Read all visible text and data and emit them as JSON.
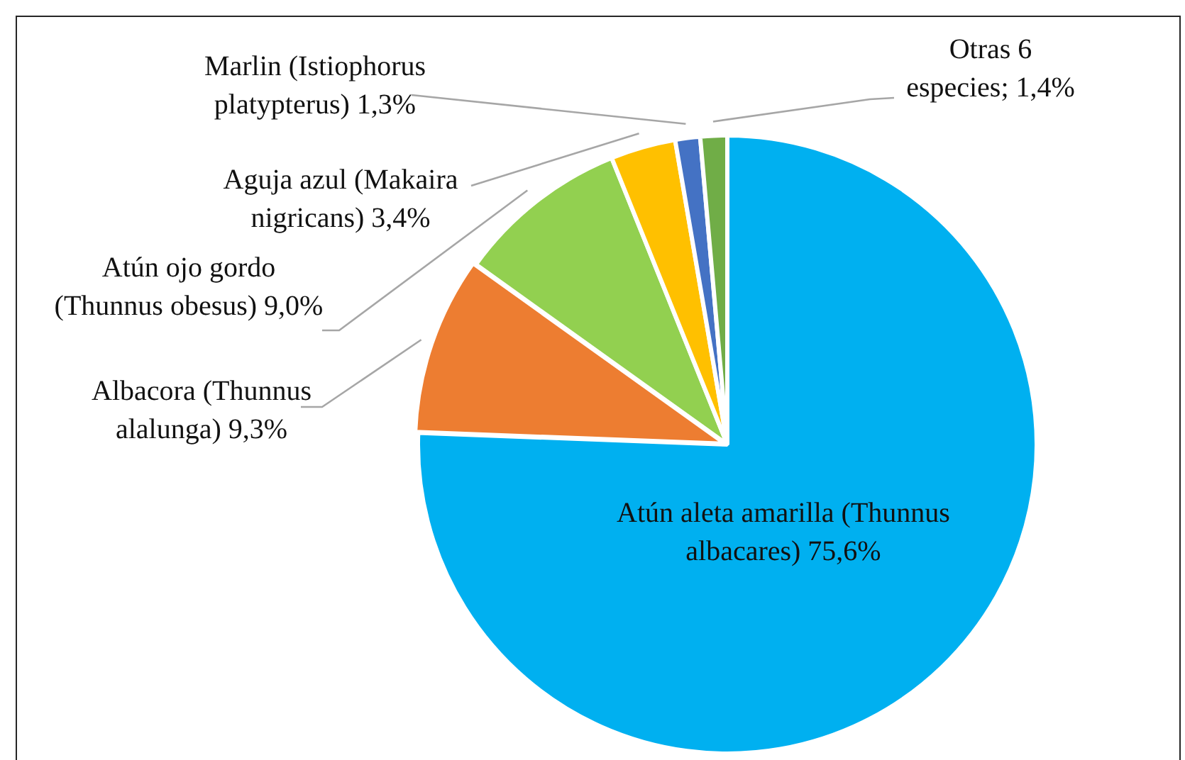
{
  "chart_data": {
    "type": "pie",
    "categories": [
      "Atún aleta amarilla (Thunnus albacares)",
      "Albacora (Thunnus alalunga)",
      "Atún ojo gordo (Thunnus obesus)",
      "Aguja azul (Makaira nigricans)",
      "Marlin (Istiophorus platypterus)",
      "Otras 6 especies"
    ],
    "values": [
      75.6,
      9.3,
      9.0,
      3.4,
      1.3,
      1.4
    ],
    "colors": [
      "#00b0f0",
      "#ed7d31",
      "#92d050",
      "#ffc000",
      "#4472c4",
      "#70ad47"
    ],
    "value_labels": [
      "75,6%",
      "9,3%",
      "9,0%",
      "3,4%",
      "1,3%",
      "1,4%"
    ],
    "legend": false
  }
}
